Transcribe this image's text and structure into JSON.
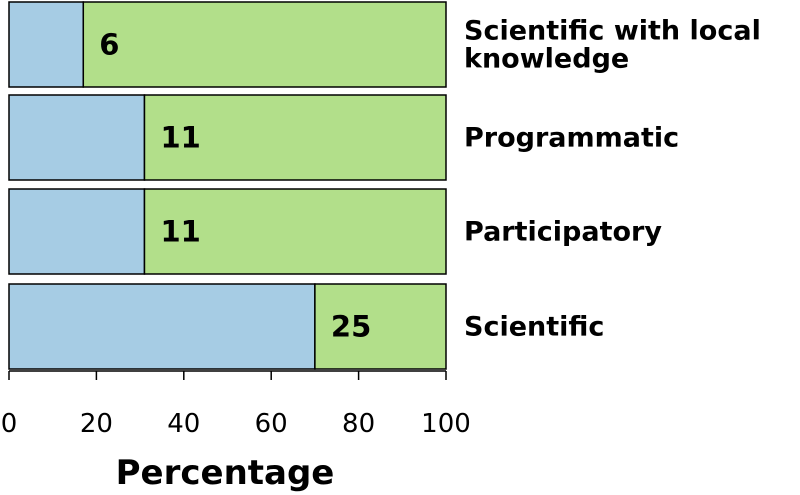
{
  "chart_data": {
    "type": "bar",
    "orientation": "horizontal",
    "stacked": true,
    "percent_stacked": true,
    "categories": [
      "Scientific with local knowledge",
      "Programmatic",
      "Participatory",
      "Scientific"
    ],
    "category_label_lines": [
      [
        "Scientific with local",
        "knowledge"
      ],
      [
        "Programmatic"
      ],
      [
        "Participatory"
      ],
      [
        "Scientific"
      ]
    ],
    "series": [
      {
        "values": [
          17,
          31,
          31,
          70
        ],
        "color": "#a6cce4"
      },
      {
        "values": [
          83,
          69,
          69,
          30
        ],
        "color": "#b2df8a"
      }
    ],
    "bar_labels": [
      "6",
      "11",
      "11",
      "25"
    ],
    "xlabel": "Percentage",
    "ylabel": "",
    "xlim": [
      0,
      100
    ],
    "xticks": [
      0,
      20,
      40,
      60,
      80,
      100
    ],
    "grid": false,
    "legend": "none"
  }
}
